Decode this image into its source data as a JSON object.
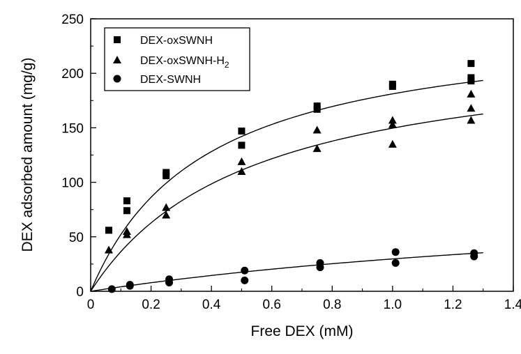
{
  "chart_data": {
    "type": "scatter",
    "title": "",
    "xlabel": "Free DEX (mM)",
    "ylabel": "DEX adsorbed amount (mg/g)",
    "xlim": [
      0,
      1.4
    ],
    "ylim": [
      0,
      250
    ],
    "xticks": [
      "0",
      "0.2",
      "0.4",
      "0.6",
      "0.8",
      "1.0",
      "1.2",
      "1.4"
    ],
    "yticks": [
      "0",
      "50",
      "100",
      "150",
      "200",
      "250"
    ],
    "legend_position": "top-left",
    "series": [
      {
        "name": "DEX-oxSWNH",
        "marker": "square",
        "fit": {
          "qmax": 250,
          "kd": 0.38
        },
        "x": [
          0.06,
          0.12,
          0.12,
          0.25,
          0.25,
          0.5,
          0.5,
          0.75,
          0.75,
          1.0,
          1.0,
          1.26,
          1.26,
          1.26
        ],
        "y": [
          56,
          83,
          74,
          109,
          106,
          147,
          134,
          170,
          167,
          190,
          188,
          209,
          196,
          193
        ]
      },
      {
        "name": "DEX-oxSWNH-H",
        "name_sub": "2",
        "marker": "triangle",
        "fit": {
          "qmax": 229,
          "kd": 0.53
        },
        "x": [
          0.06,
          0.12,
          0.12,
          0.25,
          0.25,
          0.5,
          0.5,
          0.75,
          0.75,
          1.0,
          1.0,
          1.0,
          1.26,
          1.26,
          1.26
        ],
        "y": [
          38,
          55,
          52,
          77,
          70,
          119,
          110,
          148,
          131,
          157,
          153,
          135,
          181,
          168,
          157
        ]
      },
      {
        "name": "DEX-SWNH",
        "marker": "circle",
        "fit": {
          "qmax": 98,
          "kd": 2.3
        },
        "x": [
          0.07,
          0.13,
          0.13,
          0.26,
          0.26,
          0.51,
          0.51,
          0.76,
          0.76,
          1.01,
          1.01,
          1.27,
          1.27
        ],
        "y": [
          2,
          6,
          5,
          11,
          8,
          19,
          10,
          26,
          22,
          36,
          26,
          35,
          32
        ]
      }
    ]
  }
}
